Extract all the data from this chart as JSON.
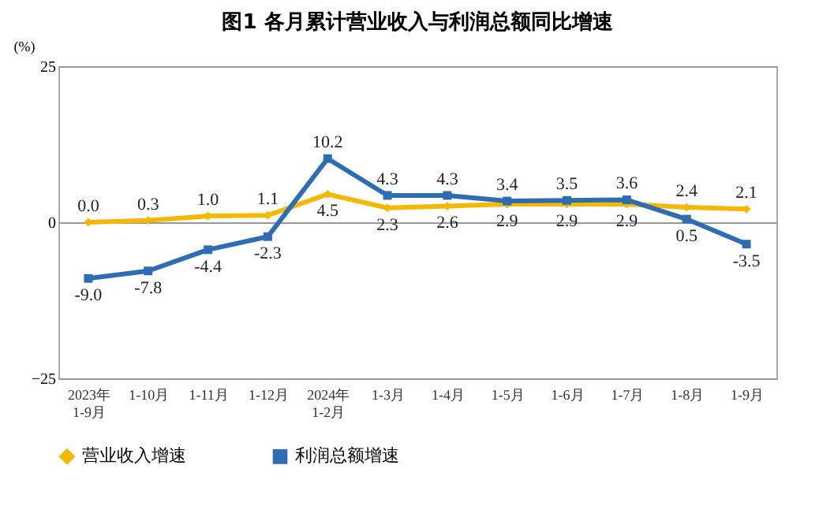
{
  "chart_data": {
    "type": "line",
    "title": "图1  各月累计营业收入与利润总额同比增速",
    "ylabel": "(%)",
    "categories": [
      "2023年\n1-9月",
      "1-10月",
      "1-11月",
      "1-12月",
      "2024年\n1-2月",
      "1-3月",
      "1-4月",
      "1-5月",
      "1-6月",
      "1-7月",
      "1-8月",
      "1-9月"
    ],
    "series": [
      {
        "name": "营业收入增速",
        "color": "#f5b800",
        "marker": "diamond",
        "values": [
          0.0,
          0.3,
          1.0,
          1.1,
          4.5,
          2.3,
          2.6,
          2.9,
          2.9,
          2.9,
          2.4,
          2.1
        ],
        "value_labels": [
          "0.0",
          "0.3",
          "1.0",
          "1.1",
          "4.5",
          "2.3",
          "2.6",
          "2.9",
          "2.9",
          "2.9",
          "2.4",
          "2.1"
        ]
      },
      {
        "name": "利润总额增速",
        "color": "#2e6db4",
        "marker": "square",
        "values": [
          -9.0,
          -7.8,
          -4.4,
          -2.3,
          10.2,
          4.3,
          4.3,
          3.4,
          3.5,
          3.6,
          0.5,
          -3.5
        ],
        "value_labels": [
          "-9.0",
          "-7.8",
          "-4.4",
          "-2.3",
          "10.2",
          "4.3",
          "4.3",
          "3.4",
          "3.5",
          "3.6",
          "0.5",
          "-3.5"
        ]
      }
    ],
    "ylim": [
      -25,
      25
    ],
    "yticks": [
      -25,
      0,
      25
    ],
    "grid": "y",
    "legend": "bottom",
    "line_style": "solid"
  }
}
